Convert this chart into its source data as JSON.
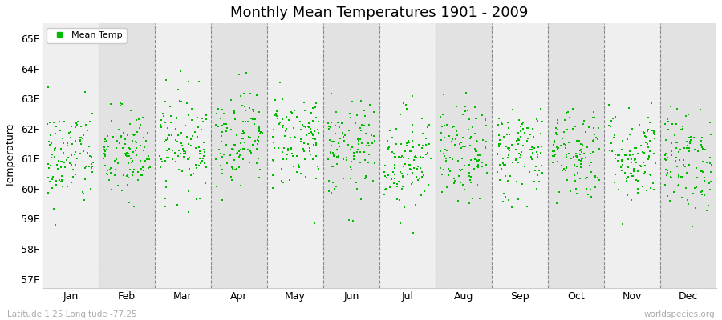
{
  "title": "Monthly Mean Temperatures 1901 - 2009",
  "ylabel": "Temperature",
  "xlabel_months": [
    "Jan",
    "Feb",
    "Mar",
    "Apr",
    "May",
    "Jun",
    "Jul",
    "Aug",
    "Sep",
    "Oct",
    "Nov",
    "Dec"
  ],
  "ytick_labels": [
    "57F",
    "58F",
    "59F",
    "60F",
    "61F",
    "62F",
    "63F",
    "64F",
    "65F"
  ],
  "ytick_values": [
    57,
    58,
    59,
    60,
    61,
    62,
    63,
    64,
    65
  ],
  "ylim": [
    56.7,
    65.5
  ],
  "dot_color": "#00bb00",
  "dot_size": 3,
  "bg_color_light": "#efefef",
  "bg_color_dark": "#e2e2e2",
  "legend_label": "Mean Temp",
  "footer_left": "Latitude 1.25 Longitude -77.25",
  "footer_right": "worldspecies.org",
  "seed": 42,
  "n_years": 109,
  "monthly_means": [
    61.05,
    61.1,
    61.55,
    61.75,
    61.65,
    61.25,
    61.0,
    61.1,
    61.2,
    61.25,
    61.1,
    60.95
  ],
  "monthly_stds": [
    0.85,
    0.8,
    0.85,
    0.8,
    0.8,
    0.8,
    0.85,
    0.8,
    0.8,
    0.8,
    0.8,
    0.85
  ]
}
